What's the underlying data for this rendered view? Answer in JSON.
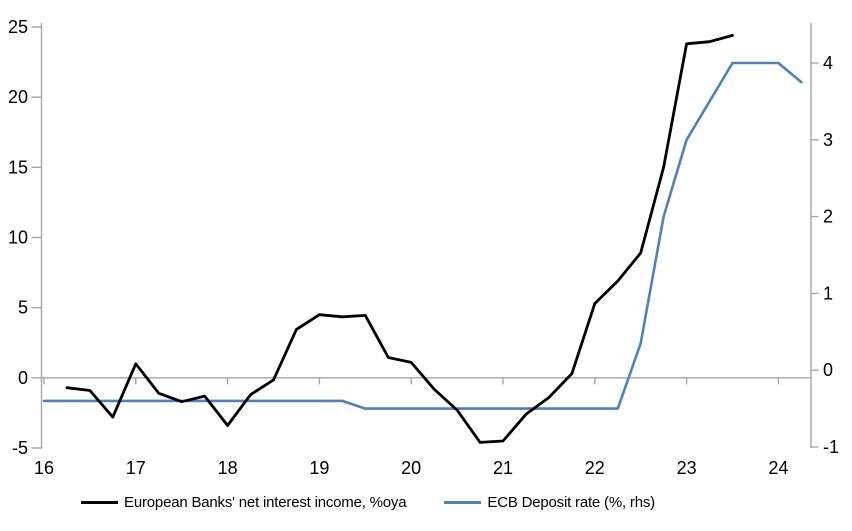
{
  "chart_data": {
    "type": "line",
    "grid": "none",
    "legend_position": "bottom",
    "zero_line": true,
    "x_axis": {
      "tick_labels": [
        "16",
        "17",
        "18",
        "19",
        "20",
        "21",
        "22",
        "23",
        "24"
      ],
      "tick_values": [
        16,
        17,
        18,
        19,
        20,
        21,
        22,
        23,
        24
      ],
      "range": [
        16,
        24.4
      ]
    },
    "left_axis": {
      "tick_labels": [
        "-5",
        "0",
        "5",
        "10",
        "15",
        "20",
        "25"
      ],
      "tick_values": [
        -5,
        0,
        5,
        10,
        15,
        20,
        25
      ],
      "range": [
        -5,
        25.2
      ]
    },
    "right_axis": {
      "tick_labels": [
        "-1",
        "0",
        "1",
        "2",
        "3",
        "4"
      ],
      "tick_values": [
        -1,
        0,
        1,
        2,
        3,
        4
      ],
      "range": [
        -1,
        4.55
      ]
    },
    "series": [
      {
        "name": "European Banks' net interest income, %oya",
        "axis": "left",
        "color": "#000000",
        "x": [
          16.25,
          16.5,
          16.75,
          17.0,
          17.25,
          17.5,
          17.75,
          18.0,
          18.25,
          18.5,
          18.75,
          19.0,
          19.25,
          19.5,
          19.75,
          20.0,
          20.25,
          20.5,
          20.75,
          21.0,
          21.25,
          21.5,
          21.75,
          22.0,
          22.25,
          22.5,
          22.75,
          23.0,
          23.25,
          23.5
        ],
        "values": [
          -0.7,
          -0.9,
          -2.8,
          1.0,
          -1.1,
          -1.7,
          -1.3,
          -3.4,
          -1.2,
          -0.15,
          3.45,
          4.5,
          4.35,
          4.45,
          1.45,
          1.1,
          -0.8,
          -2.3,
          -4.6,
          -4.5,
          -2.6,
          -1.4,
          0.3,
          5.3,
          6.9,
          8.9,
          15.0,
          23.8,
          23.95,
          24.4
        ]
      },
      {
        "name": "ECB Deposit rate (%, rhs)",
        "axis": "right",
        "color": "#4f81bd",
        "x": [
          16.0,
          16.25,
          16.5,
          16.75,
          17.0,
          17.25,
          17.5,
          17.75,
          18.0,
          18.25,
          18.5,
          18.75,
          19.0,
          19.25,
          19.5,
          19.75,
          20.0,
          20.25,
          20.5,
          20.75,
          21.0,
          21.25,
          21.5,
          21.75,
          22.0,
          22.25,
          22.5,
          22.75,
          23.0,
          23.25,
          23.5,
          23.75,
          24.0,
          24.25
        ],
        "values": [
          -0.4,
          -0.4,
          -0.4,
          -0.4,
          -0.4,
          -0.4,
          -0.4,
          -0.4,
          -0.4,
          -0.4,
          -0.4,
          -0.4,
          -0.4,
          -0.4,
          -0.5,
          -0.5,
          -0.5,
          -0.5,
          -0.5,
          -0.5,
          -0.5,
          -0.5,
          -0.5,
          -0.5,
          -0.5,
          -0.5,
          0.35,
          2.0,
          3.0,
          3.5,
          4.0,
          4.0,
          4.0,
          3.75
        ]
      }
    ]
  },
  "legend": {
    "items": [
      {
        "label": "European Banks' net interest income, %oya",
        "color": "#000000"
      },
      {
        "label": "ECB Deposit rate (%, rhs)",
        "color": "#4f81bd"
      }
    ]
  },
  "colors": {
    "background": "#ffffff",
    "axis": "#a6a6a6",
    "tick_text": "#000000",
    "nii_line": "#000000",
    "ecb_line": "#4f81bd"
  }
}
